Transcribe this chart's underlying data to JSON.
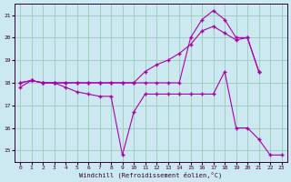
{
  "xlabel": "Windchill (Refroidissement éolien,°C)",
  "bg_color": "#cce8f0",
  "line_color": "#aa00aa",
  "grid_color": "#99ccbb",
  "xlim": [
    -0.5,
    23.5
  ],
  "ylim": [
    14.5,
    21.5
  ],
  "yticks": [
    15,
    16,
    17,
    18,
    19,
    20,
    21
  ],
  "xticks": [
    0,
    1,
    2,
    3,
    4,
    5,
    6,
    7,
    8,
    9,
    10,
    11,
    12,
    13,
    14,
    15,
    16,
    17,
    18,
    19,
    20,
    21,
    22,
    23
  ],
  "series": [
    {
      "x": [
        0,
        1,
        2,
        3,
        4,
        5,
        6,
        7,
        8,
        9,
        10,
        11,
        12,
        13,
        14,
        15,
        16,
        17,
        18,
        19,
        20,
        21
      ],
      "y": [
        18.0,
        18.1,
        18.0,
        18.0,
        18.0,
        18.0,
        18.0,
        18.0,
        18.0,
        18.0,
        18.0,
        18.5,
        18.8,
        19.0,
        19.3,
        19.7,
        20.3,
        20.5,
        20.2,
        19.9,
        20.0,
        18.5
      ]
    },
    {
      "x": [
        0,
        1,
        2,
        3,
        4,
        5,
        6,
        7,
        8,
        9,
        10,
        11,
        12,
        13,
        14,
        15,
        16,
        17,
        18,
        19,
        20,
        21
      ],
      "y": [
        18.0,
        18.1,
        18.0,
        18.0,
        18.0,
        18.0,
        18.0,
        18.0,
        18.0,
        18.0,
        18.0,
        18.0,
        18.0,
        18.0,
        18.0,
        20.0,
        20.8,
        21.2,
        20.8,
        20.0,
        20.0,
        18.5
      ]
    },
    {
      "x": [
        0,
        1,
        2,
        3,
        4,
        5,
        6,
        7,
        8,
        9,
        10,
        11,
        12,
        13,
        14,
        15,
        16,
        17,
        18,
        19,
        20,
        21,
        22,
        23
      ],
      "y": [
        17.8,
        18.1,
        18.0,
        18.0,
        17.8,
        17.6,
        17.5,
        17.4,
        17.4,
        14.8,
        16.7,
        17.5,
        17.5,
        17.5,
        17.5,
        17.5,
        17.5,
        17.5,
        18.5,
        16.0,
        16.0,
        15.5,
        14.8,
        14.8
      ]
    }
  ]
}
